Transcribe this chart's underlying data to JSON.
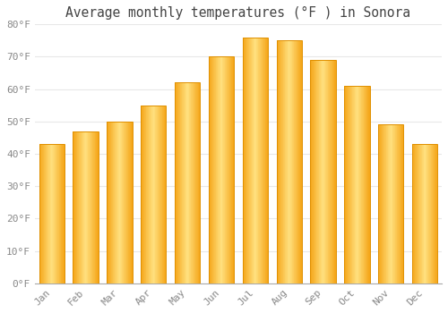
{
  "title": "Average monthly temperatures (°F ) in Sonora",
  "months": [
    "Jan",
    "Feb",
    "Mar",
    "Apr",
    "May",
    "Jun",
    "Jul",
    "Aug",
    "Sep",
    "Oct",
    "Nov",
    "Dec"
  ],
  "values": [
    43,
    47,
    50,
    55,
    62,
    70,
    76,
    75,
    69,
    61,
    49,
    43
  ],
  "bar_color_edge": "#F5A800",
  "bar_color_center": "#FFE080",
  "bar_color_side": "#FFA500",
  "ylim": [
    0,
    80
  ],
  "yticks": [
    0,
    10,
    20,
    30,
    40,
    50,
    60,
    70,
    80
  ],
  "background_color": "#FFFFFF",
  "grid_color": "#E8E8E8",
  "title_fontsize": 10.5,
  "tick_fontsize": 8,
  "font_family": "monospace"
}
